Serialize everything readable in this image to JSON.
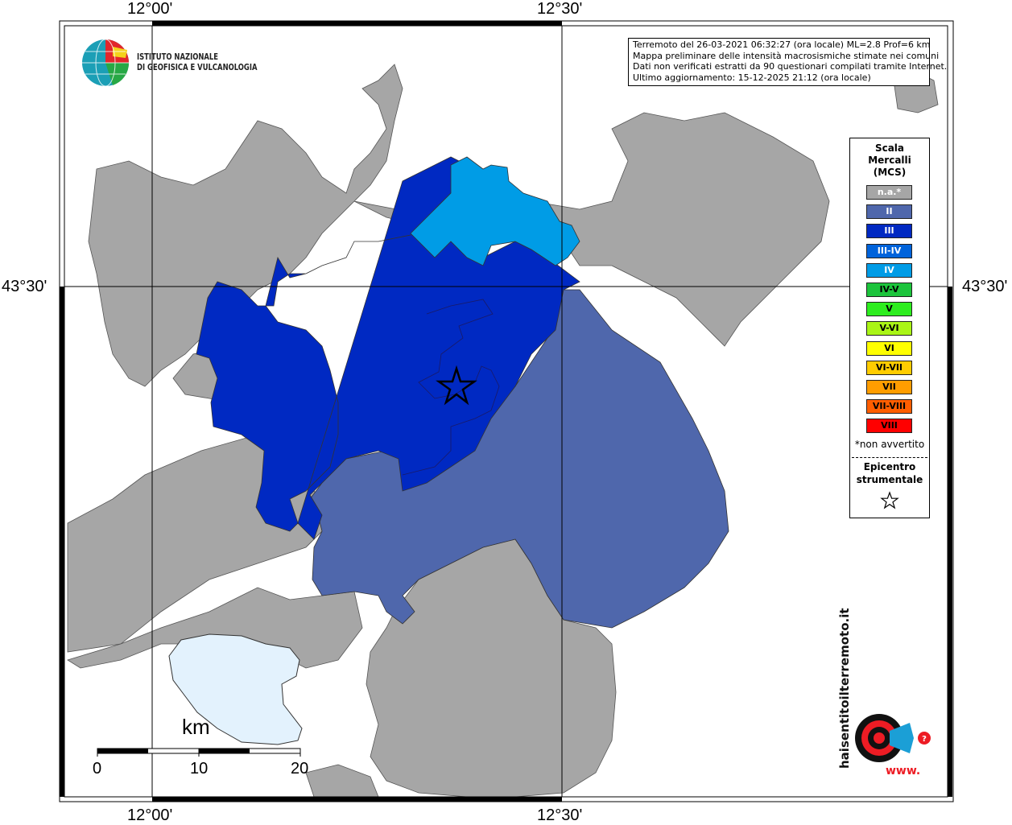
{
  "coords": {
    "lon_left": "12°00'",
    "lon_right": "12°30'",
    "lat_label": "43°30'"
  },
  "institute": {
    "line1": "ISTITUTO NAZIONALE",
    "line2": "DI GEOFISICA E VULCANOLOGIA"
  },
  "info": {
    "line1": "Terremoto del 26-03-2021 06:32:27 (ora locale) ML=2.8 Prof=6 km",
    "line2": "Mappa preliminare delle intensità macrosismiche stimate nei comuni",
    "line3": "Dati non verificati estratti da 90 questionari compilati tramite Internet.",
    "line4": "Ultimo aggiornamento: 15-12-2025 21:12 (ora locale)"
  },
  "legend": {
    "title1": "Scala",
    "title2": "Mercalli",
    "title3": "(MCS)",
    "items": [
      {
        "label": "n.a.*",
        "color": "#a6a6a6"
      },
      {
        "label": "II",
        "color": "#4f67ac"
      },
      {
        "label": "III",
        "color": "#0029c2"
      },
      {
        "label": "III-IV",
        "color": "#0063db"
      },
      {
        "label": "IV",
        "color": "#009ce6"
      },
      {
        "label": "IV-V",
        "color": "#1cc43c"
      },
      {
        "label": "V",
        "color": "#2ded1f"
      },
      {
        "label": "V-VI",
        "color": "#aaf516"
      },
      {
        "label": "VI",
        "color": "#ffff00"
      },
      {
        "label": "VI-VII",
        "color": "#ffcc00"
      },
      {
        "label": "VII",
        "color": "#ff9d00"
      },
      {
        "label": "VII-VIII",
        "color": "#ff5e00"
      },
      {
        "label": "VIII",
        "color": "#ff0000"
      }
    ],
    "note": "*non avvertito",
    "epicenter1": "Epicentro",
    "epicenter2": "strumentale"
  },
  "scale": {
    "unit": "km",
    "labels": [
      "0",
      "10",
      "20"
    ]
  },
  "brand": {
    "text": "haisentitoilterremoto.it",
    "www": "www."
  }
}
